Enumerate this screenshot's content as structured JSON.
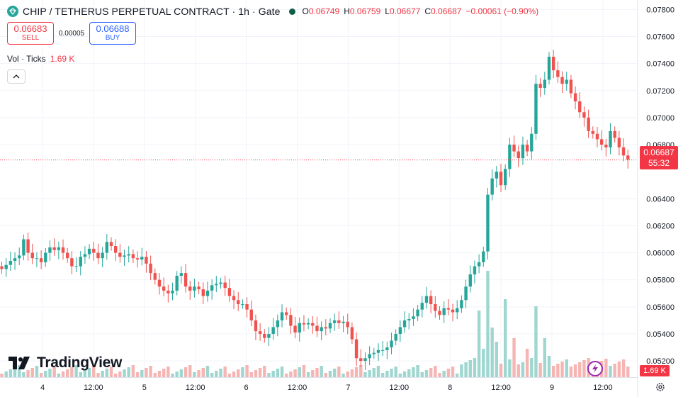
{
  "header": {
    "title": "CHIP / TETHERUS PERPETUAL CONTRACT · 1h · Gate",
    "open_label": "O",
    "open": "0.06749",
    "high_label": "H",
    "high": "0.06759",
    "low_label": "L",
    "low": "0.06677",
    "close_label": "C",
    "close": "0.06687",
    "change": "−0.00061 (−0.90%)"
  },
  "trade": {
    "sell_price": "0.06683",
    "sell_label": "SELL",
    "spread": "0.00005",
    "buy_price": "0.06688",
    "buy_label": "BUY"
  },
  "volume": {
    "label": "Vol · Ticks",
    "value": "1.69 K",
    "axis_tag": "1.69 K"
  },
  "last_price": {
    "value": "0.06687",
    "countdown": "55:32"
  },
  "brand": {
    "name": "TradingView"
  },
  "icons": {
    "symbol": "diamond-icon",
    "status": "market-status-dot-icon",
    "collapse": "chevron-up-icon",
    "logo": "tradingview-logo-icon",
    "lightning": "lightning-icon",
    "settings": "gear-icon"
  },
  "colors": {
    "up": "#26a69a",
    "down": "#ef5350",
    "price_line": "#f23645",
    "vol_up": "#9fd6cf",
    "vol_down": "#f5b5b3"
  },
  "chart_data": {
    "type": "candlestick",
    "title": "CHIP / TETHERUS PERPETUAL CONTRACT",
    "interval": "1h",
    "exchange": "Gate",
    "x_tick_labels": [
      "4",
      "12:00",
      "5",
      "12:00",
      "6",
      "12:00",
      "7",
      "12:00",
      "8",
      "12:00",
      "9",
      "12:00"
    ],
    "y_tick_labels": [
      "0.07800",
      "0.07600",
      "0.07400",
      "0.07200",
      "0.07000",
      "0.06800",
      "0.06400",
      "0.06200",
      "0.06000",
      "0.05800",
      "0.05600",
      "0.05400",
      "0.05200"
    ],
    "y_range": [
      0.0508,
      0.0787
    ],
    "grid": true,
    "last_price": 0.06687,
    "close_series": [
      0.0588,
      0.0591,
      0.0594,
      0.0596,
      0.0598,
      0.061,
      0.06,
      0.0596,
      0.0596,
      0.0593,
      0.06,
      0.0604,
      0.0602,
      0.0604,
      0.06,
      0.0596,
      0.059,
      0.059,
      0.0597,
      0.0599,
      0.0603,
      0.06,
      0.0596,
      0.06,
      0.0608,
      0.0605,
      0.06,
      0.0597,
      0.0598,
      0.0599,
      0.0596,
      0.0595,
      0.0597,
      0.0592,
      0.0585,
      0.058,
      0.0575,
      0.0572,
      0.057,
      0.0572,
      0.0583,
      0.0585,
      0.0575,
      0.0572,
      0.0575,
      0.0573,
      0.0568,
      0.0572,
      0.0576,
      0.0577,
      0.0578,
      0.0574,
      0.0568,
      0.0565,
      0.0562,
      0.0562,
      0.0558,
      0.055,
      0.0542,
      0.054,
      0.0537,
      0.054,
      0.0545,
      0.055,
      0.0556,
      0.0554,
      0.0546,
      0.0541,
      0.0548,
      0.0547,
      0.0548,
      0.0546,
      0.0542,
      0.0545,
      0.0544,
      0.0548,
      0.055,
      0.0548,
      0.0549,
      0.0545,
      0.0536,
      0.0522,
      0.052,
      0.0522,
      0.0525,
      0.0526,
      0.0528,
      0.0528,
      0.053,
      0.0535,
      0.054,
      0.0545,
      0.055,
      0.0551,
      0.0553,
      0.0558,
      0.0563,
      0.0568,
      0.0562,
      0.0557,
      0.0554,
      0.0559,
      0.0558,
      0.0556,
      0.0559,
      0.0565,
      0.0575,
      0.0584,
      0.059,
      0.0593,
      0.0601,
      0.0643,
      0.0655,
      0.066,
      0.065,
      0.0662,
      0.068,
      0.0675,
      0.067,
      0.068,
      0.0675,
      0.0688,
      0.0725,
      0.0722,
      0.0728,
      0.0745,
      0.0735,
      0.073,
      0.0725,
      0.0728,
      0.0718,
      0.0712,
      0.0704,
      0.07,
      0.069,
      0.0688,
      0.0684,
      0.068,
      0.0678,
      0.069,
      0.0685,
      0.0678,
      0.0672,
      0.0669
    ]
  }
}
